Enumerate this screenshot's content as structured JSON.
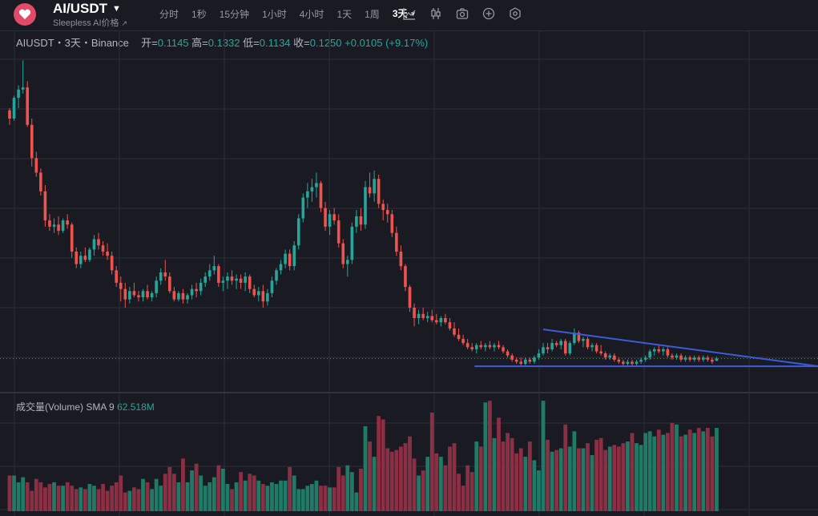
{
  "header": {
    "symbol": "AI/USDT",
    "subtitle": "Sleepless AI价格",
    "intervals": [
      "分时",
      "1秒",
      "15分钟",
      "1小时",
      "4小时",
      "1天",
      "1周",
      "3天"
    ],
    "active_interval": "3天"
  },
  "icons": [
    "logo-icon",
    "indicator-icon",
    "candle-type-icon",
    "camera-icon",
    "add-icon",
    "settings-icon"
  ],
  "legend": {
    "pair": "AIUSDT・3天・Binance",
    "open_label": "开=",
    "open": "0.1145",
    "high_label": "高=",
    "high": "0.1332",
    "low_label": "低=",
    "low": "0.1134",
    "close_label": "收=",
    "close": "0.1250",
    "change": "+0.0105 (+9.17%)"
  },
  "volume_legend": {
    "label": "成交量(Volume)",
    "sma": "SMA 9",
    "value": "62.518M"
  },
  "colors": {
    "up": "#26a69a",
    "down": "#ef5350",
    "up_vol": "#1f7a66",
    "down_vol": "#8a2f44",
    "trendline": "#3d5bd9",
    "background": "#1a1b22",
    "grid": "#2a2e39"
  },
  "chart_data": {
    "type": "candlestick",
    "ylim": [
      0,
      1.55
    ],
    "candles": [
      [
        1.32,
        1.33,
        1.25,
        1.28
      ],
      [
        1.28,
        1.39,
        1.27,
        1.38
      ],
      [
        1.38,
        1.44,
        1.33,
        1.42
      ],
      [
        1.42,
        1.56,
        1.4,
        1.43
      ],
      [
        1.43,
        1.46,
        1.24,
        1.25
      ],
      [
        1.25,
        1.28,
        1.05,
        1.09
      ],
      [
        1.09,
        1.12,
        1.0,
        1.02
      ],
      [
        1.02,
        1.04,
        0.91,
        0.93
      ],
      [
        0.93,
        0.96,
        0.76,
        0.79
      ],
      [
        0.79,
        0.82,
        0.74,
        0.76
      ],
      [
        0.76,
        0.8,
        0.73,
        0.77
      ],
      [
        0.77,
        0.81,
        0.72,
        0.74
      ],
      [
        0.74,
        0.8,
        0.73,
        0.79
      ],
      [
        0.79,
        0.82,
        0.75,
        0.77
      ],
      [
        0.77,
        0.78,
        0.61,
        0.64
      ],
      [
        0.64,
        0.66,
        0.56,
        0.58
      ],
      [
        0.58,
        0.64,
        0.56,
        0.62
      ],
      [
        0.62,
        0.66,
        0.59,
        0.6
      ],
      [
        0.6,
        0.66,
        0.59,
        0.65
      ],
      [
        0.65,
        0.72,
        0.62,
        0.7
      ],
      [
        0.7,
        0.73,
        0.65,
        0.67
      ],
      [
        0.67,
        0.69,
        0.62,
        0.64
      ],
      [
        0.64,
        0.68,
        0.6,
        0.62
      ],
      [
        0.62,
        0.64,
        0.53,
        0.55
      ],
      [
        0.55,
        0.57,
        0.47,
        0.49
      ],
      [
        0.49,
        0.52,
        0.4,
        0.46
      ],
      [
        0.46,
        0.49,
        0.37,
        0.41
      ],
      [
        0.41,
        0.47,
        0.39,
        0.45
      ],
      [
        0.45,
        0.49,
        0.42,
        0.43
      ],
      [
        0.43,
        0.45,
        0.4,
        0.42
      ],
      [
        0.42,
        0.46,
        0.4,
        0.45
      ],
      [
        0.45,
        0.48,
        0.41,
        0.42
      ],
      [
        0.42,
        0.45,
        0.4,
        0.44
      ],
      [
        0.44,
        0.52,
        0.42,
        0.5
      ],
      [
        0.5,
        0.56,
        0.48,
        0.54
      ],
      [
        0.54,
        0.6,
        0.5,
        0.52
      ],
      [
        0.52,
        0.54,
        0.44,
        0.45
      ],
      [
        0.45,
        0.47,
        0.4,
        0.41
      ],
      [
        0.41,
        0.45,
        0.4,
        0.44
      ],
      [
        0.44,
        0.46,
        0.39,
        0.41
      ],
      [
        0.41,
        0.44,
        0.39,
        0.43
      ],
      [
        0.43,
        0.48,
        0.41,
        0.46
      ],
      [
        0.46,
        0.49,
        0.42,
        0.45
      ],
      [
        0.45,
        0.51,
        0.43,
        0.49
      ],
      [
        0.49,
        0.54,
        0.47,
        0.52
      ],
      [
        0.52,
        0.58,
        0.5,
        0.55
      ],
      [
        0.55,
        0.62,
        0.53,
        0.57
      ],
      [
        0.57,
        0.58,
        0.47,
        0.49
      ],
      [
        0.49,
        0.52,
        0.45,
        0.5
      ],
      [
        0.5,
        0.54,
        0.46,
        0.52
      ],
      [
        0.52,
        0.55,
        0.48,
        0.5
      ],
      [
        0.5,
        0.53,
        0.46,
        0.51
      ],
      [
        0.51,
        0.53,
        0.46,
        0.49
      ],
      [
        0.49,
        0.54,
        0.45,
        0.52
      ],
      [
        0.52,
        0.53,
        0.44,
        0.46
      ],
      [
        0.46,
        0.48,
        0.42,
        0.43
      ],
      [
        0.43,
        0.47,
        0.4,
        0.45
      ],
      [
        0.45,
        0.48,
        0.37,
        0.4
      ],
      [
        0.4,
        0.46,
        0.38,
        0.44
      ],
      [
        0.44,
        0.52,
        0.42,
        0.5
      ],
      [
        0.5,
        0.56,
        0.48,
        0.55
      ],
      [
        0.55,
        0.6,
        0.53,
        0.58
      ],
      [
        0.58,
        0.65,
        0.56,
        0.63
      ],
      [
        0.63,
        0.65,
        0.55,
        0.57
      ],
      [
        0.57,
        0.69,
        0.55,
        0.67
      ],
      [
        0.67,
        0.82,
        0.65,
        0.8
      ],
      [
        0.8,
        0.92,
        0.78,
        0.9
      ],
      [
        0.9,
        0.97,
        0.85,
        0.93
      ],
      [
        0.93,
        0.99,
        0.88,
        0.95
      ],
      [
        0.95,
        1.02,
        0.9,
        0.97
      ],
      [
        0.97,
        0.98,
        0.83,
        0.85
      ],
      [
        0.85,
        0.88,
        0.74,
        0.76
      ],
      [
        0.76,
        0.84,
        0.72,
        0.82
      ],
      [
        0.82,
        0.85,
        0.77,
        0.79
      ],
      [
        0.79,
        0.82,
        0.66,
        0.68
      ],
      [
        0.68,
        0.7,
        0.56,
        0.58
      ],
      [
        0.58,
        0.62,
        0.52,
        0.6
      ],
      [
        0.6,
        0.78,
        0.58,
        0.76
      ],
      [
        0.76,
        0.84,
        0.73,
        0.81
      ],
      [
        0.81,
        0.85,
        0.74,
        0.77
      ],
      [
        0.77,
        0.98,
        0.75,
        0.95
      ],
      [
        0.95,
        1.02,
        0.9,
        0.92
      ],
      [
        0.92,
        1.03,
        0.88,
        0.99
      ],
      [
        0.99,
        1.01,
        0.85,
        0.87
      ],
      [
        0.87,
        0.89,
        0.79,
        0.84
      ],
      [
        0.84,
        0.87,
        0.78,
        0.82
      ],
      [
        0.82,
        0.84,
        0.71,
        0.73
      ],
      [
        0.73,
        0.76,
        0.62,
        0.64
      ],
      [
        0.64,
        0.67,
        0.55,
        0.57
      ],
      [
        0.57,
        0.58,
        0.45,
        0.47
      ],
      [
        0.47,
        0.48,
        0.35,
        0.37
      ],
      [
        0.37,
        0.39,
        0.28,
        0.32
      ],
      [
        0.32,
        0.36,
        0.29,
        0.34
      ],
      [
        0.34,
        0.37,
        0.31,
        0.32
      ],
      [
        0.32,
        0.35,
        0.3,
        0.33
      ],
      [
        0.33,
        0.36,
        0.3,
        0.31
      ],
      [
        0.31,
        0.34,
        0.29,
        0.3
      ],
      [
        0.3,
        0.33,
        0.28,
        0.32
      ],
      [
        0.32,
        0.34,
        0.29,
        0.3
      ],
      [
        0.3,
        0.32,
        0.26,
        0.27
      ],
      [
        0.27,
        0.3,
        0.23,
        0.24
      ],
      [
        0.24,
        0.27,
        0.21,
        0.22
      ],
      [
        0.22,
        0.24,
        0.19,
        0.2
      ],
      [
        0.2,
        0.22,
        0.17,
        0.18
      ],
      [
        0.18,
        0.2,
        0.16,
        0.17
      ],
      [
        0.17,
        0.2,
        0.15,
        0.19
      ],
      [
        0.19,
        0.21,
        0.17,
        0.18
      ],
      [
        0.18,
        0.2,
        0.16,
        0.19
      ],
      [
        0.19,
        0.21,
        0.17,
        0.18
      ],
      [
        0.18,
        0.2,
        0.16,
        0.19
      ],
      [
        0.19,
        0.21,
        0.17,
        0.18
      ],
      [
        0.18,
        0.19,
        0.15,
        0.16
      ],
      [
        0.16,
        0.17,
        0.13,
        0.14
      ],
      [
        0.14,
        0.15,
        0.11,
        0.12
      ],
      [
        0.12,
        0.13,
        0.1,
        0.11
      ],
      [
        0.11,
        0.13,
        0.09,
        0.1
      ],
      [
        0.1,
        0.13,
        0.09,
        0.12
      ],
      [
        0.12,
        0.13,
        0.1,
        0.11
      ],
      [
        0.11,
        0.14,
        0.1,
        0.13
      ],
      [
        0.13,
        0.17,
        0.12,
        0.15
      ],
      [
        0.15,
        0.2,
        0.14,
        0.18
      ],
      [
        0.18,
        0.2,
        0.15,
        0.17
      ],
      [
        0.17,
        0.22,
        0.16,
        0.2
      ],
      [
        0.2,
        0.21,
        0.18,
        0.19
      ],
      [
        0.19,
        0.22,
        0.17,
        0.21
      ],
      [
        0.21,
        0.22,
        0.14,
        0.15
      ],
      [
        0.15,
        0.21,
        0.14,
        0.2
      ],
      [
        0.2,
        0.27,
        0.19,
        0.25
      ],
      [
        0.25,
        0.26,
        0.2,
        0.21
      ],
      [
        0.21,
        0.23,
        0.18,
        0.22
      ],
      [
        0.22,
        0.23,
        0.17,
        0.18
      ],
      [
        0.18,
        0.2,
        0.16,
        0.19
      ],
      [
        0.19,
        0.2,
        0.15,
        0.16
      ],
      [
        0.16,
        0.19,
        0.14,
        0.15
      ],
      [
        0.15,
        0.16,
        0.12,
        0.13
      ],
      [
        0.13,
        0.15,
        0.12,
        0.14
      ],
      [
        0.14,
        0.15,
        0.11,
        0.12
      ],
      [
        0.12,
        0.13,
        0.1,
        0.11
      ],
      [
        0.11,
        0.12,
        0.09,
        0.1
      ],
      [
        0.1,
        0.12,
        0.09,
        0.11
      ],
      [
        0.11,
        0.12,
        0.09,
        0.1
      ],
      [
        0.1,
        0.12,
        0.09,
        0.11
      ],
      [
        0.11,
        0.13,
        0.1,
        0.12
      ],
      [
        0.12,
        0.14,
        0.11,
        0.13
      ],
      [
        0.13,
        0.17,
        0.12,
        0.16
      ],
      [
        0.16,
        0.18,
        0.14,
        0.17
      ],
      [
        0.17,
        0.19,
        0.15,
        0.16
      ],
      [
        0.16,
        0.18,
        0.14,
        0.17
      ],
      [
        0.17,
        0.18,
        0.13,
        0.14
      ],
      [
        0.14,
        0.15,
        0.12,
        0.13
      ],
      [
        0.13,
        0.15,
        0.12,
        0.14
      ],
      [
        0.14,
        0.15,
        0.11,
        0.12
      ],
      [
        0.12,
        0.14,
        0.11,
        0.13
      ],
      [
        0.13,
        0.14,
        0.11,
        0.12
      ],
      [
        0.12,
        0.14,
        0.11,
        0.13
      ],
      [
        0.13,
        0.14,
        0.11,
        0.12
      ],
      [
        0.12,
        0.14,
        0.11,
        0.13
      ],
      [
        0.13,
        0.14,
        0.11,
        0.12
      ],
      [
        0.12,
        0.13,
        0.1,
        0.11
      ],
      [
        0.1145,
        0.1332,
        0.1134,
        0.125
      ]
    ],
    "volume": [
      21,
      21,
      17,
      20,
      17,
      12,
      19,
      17,
      14,
      16,
      17,
      15,
      15,
      17,
      15,
      13,
      14,
      13,
      16,
      15,
      13,
      16,
      12,
      15,
      17,
      21,
      11,
      12,
      14,
      13,
      19,
      17,
      13,
      19,
      15,
      22,
      26,
      22,
      17,
      31,
      17,
      24,
      28,
      21,
      15,
      17,
      20,
      27,
      25,
      16,
      13,
      17,
      23,
      18,
      22,
      21,
      18,
      16,
      15,
      17,
      16,
      18,
      18,
      26,
      21,
      13,
      13,
      15,
      16,
      18,
      15,
      15,
      14,
      14,
      26,
      21,
      27,
      23,
      11,
      25,
      50,
      41,
      32,
      56,
      54,
      37,
      35,
      36,
      38,
      40,
      44,
      31,
      21,
      24,
      32,
      58,
      34,
      32,
      27,
      38,
      40,
      22,
      15,
      27,
      23,
      41,
      38,
      64,
      65,
      43,
      55,
      41,
      46,
      43,
      34,
      37,
      32,
      41,
      30,
      24,
      65,
      42,
      35,
      36,
      37,
      51,
      38,
      47,
      37,
      37,
      40,
      33,
      42,
      43,
      36,
      38,
      39,
      38,
      40,
      41,
      46,
      40,
      39,
      46,
      47,
      44,
      48,
      45,
      46,
      52,
      51,
      44,
      45,
      48,
      46,
      49,
      47,
      49,
      44,
      49
    ],
    "trendline_upper": [
      [
        120,
        0.25
      ],
      [
        170,
        0.1
      ]
    ],
    "trendline_lower": [
      [
        106,
        0.1
      ],
      [
        170,
        0.1
      ]
    ],
    "current_price": 0.125
  }
}
